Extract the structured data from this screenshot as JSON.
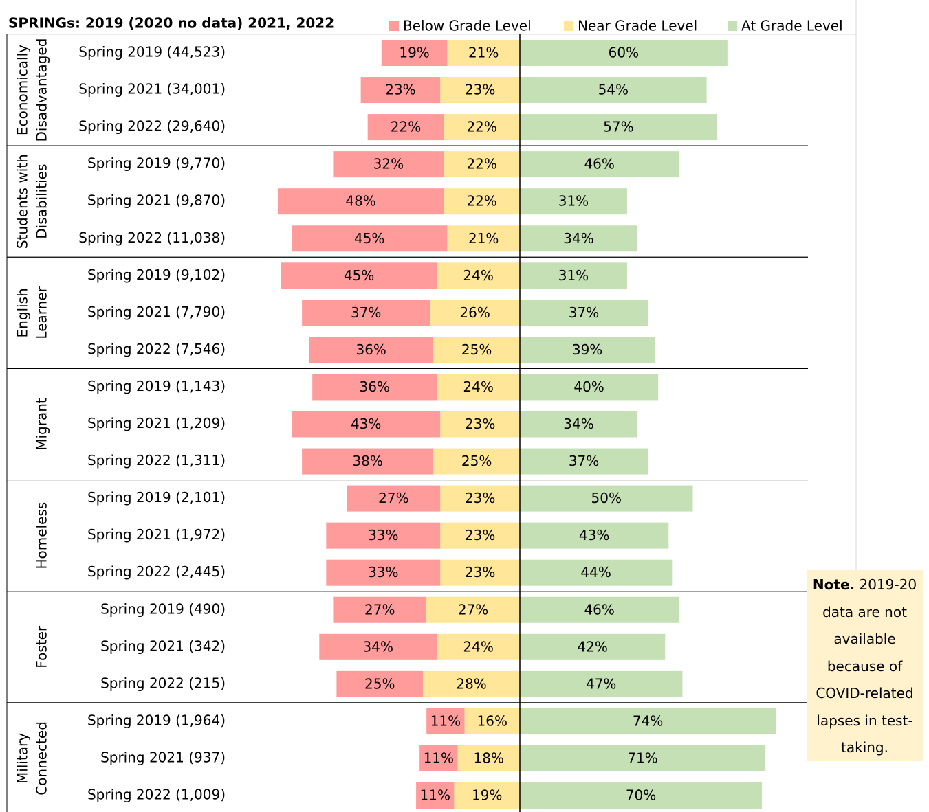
{
  "chart_data": {
    "type": "diverging_bar",
    "title": "SPRINGs: 2019 (2020 no data) 2021, 2022",
    "groups": [
      {
        "label": [
          "Economically",
          "Disadvantaged"
        ],
        "categories": [
          "Spring 2019 (44,523)",
          "Spring 2021 (34,001)",
          "Spring 2022 (29,640)"
        ]
      },
      {
        "label": [
          "Students with",
          "Disabilities"
        ],
        "categories": [
          "Spring 2019 (9,770)",
          "Spring 2021 (9,870)",
          "Spring 2022 (11,038)"
        ]
      },
      {
        "label": [
          "English",
          "Learner"
        ],
        "categories": [
          "Spring 2019 (9,102)",
          "Spring 2021 (7,790)",
          "Spring 2022 (7,546)"
        ]
      },
      {
        "label": [
          "Migrant"
        ],
        "categories": [
          "Spring 2019 (1,143)",
          "Spring 2021 (1,209)",
          "Spring 2022 (1,311)"
        ]
      },
      {
        "label": [
          "Homeless"
        ],
        "categories": [
          "Spring 2019 (2,101)",
          "Spring 2021 (1,972)",
          "Spring 2022 (2,445)"
        ]
      },
      {
        "label": [
          "Foster"
        ],
        "categories": [
          "Spring 2019 (490)",
          "Spring 2021 (342)",
          "Spring 2022 (215)"
        ]
      },
      {
        "label": [
          "Military",
          "Connected"
        ],
        "categories": [
          "Spring 2019 (1,964)",
          "Spring 2021 (937)",
          "Spring 2022 (1,009)"
        ]
      }
    ],
    "series": [
      {
        "name": "Below Grade Level",
        "color": "#ff9b9b",
        "values": [
          19,
          23,
          22,
          32,
          48,
          45,
          45,
          37,
          36,
          36,
          43,
          38,
          27,
          33,
          33,
          27,
          34,
          25,
          11,
          11,
          11
        ],
        "value_labels": [
          "19%",
          "23%",
          "22%",
          "32%",
          "48%",
          "45%",
          "45%",
          "37%",
          "36%",
          "36%",
          "43%",
          "38%",
          "27%",
          "33%",
          "33%",
          "27%",
          "34%",
          "25%",
          "11%",
          "11%",
          "11%"
        ]
      },
      {
        "name": "Near Grade Level",
        "color": "#ffe699",
        "values": [
          21,
          23,
          22,
          22,
          22,
          21,
          24,
          26,
          25,
          24,
          23,
          25,
          23,
          23,
          23,
          27,
          24,
          28,
          16,
          18,
          19
        ],
        "value_labels": [
          "21%",
          "23%",
          "22%",
          "22%",
          "22%",
          "21%",
          "24%",
          "26%",
          "25%",
          "24%",
          "23%",
          "25%",
          "23%",
          "23%",
          "23%",
          "27%",
          "24%",
          "28%",
          "16%",
          "18%",
          "19%"
        ]
      },
      {
        "name": "At Grade Level",
        "color": "#c5e0b4",
        "values": [
          60,
          54,
          57,
          46,
          31,
          34,
          31,
          37,
          39,
          40,
          34,
          37,
          50,
          43,
          44,
          46,
          42,
          47,
          74,
          71,
          70
        ],
        "value_labels": [
          "60%",
          "54%",
          "57%",
          "46%",
          "31%",
          "34%",
          "31%",
          "37%",
          "39%",
          "40%",
          "34%",
          "37%",
          "50%",
          "43%",
          "44%",
          "46%",
          "42%",
          "47%",
          "74%",
          "71%",
          "70%"
        ]
      }
    ]
  },
  "note": {
    "label": "Note.",
    "text": "2019-20 data are not available because of COVID-related lapses in test-taking."
  }
}
